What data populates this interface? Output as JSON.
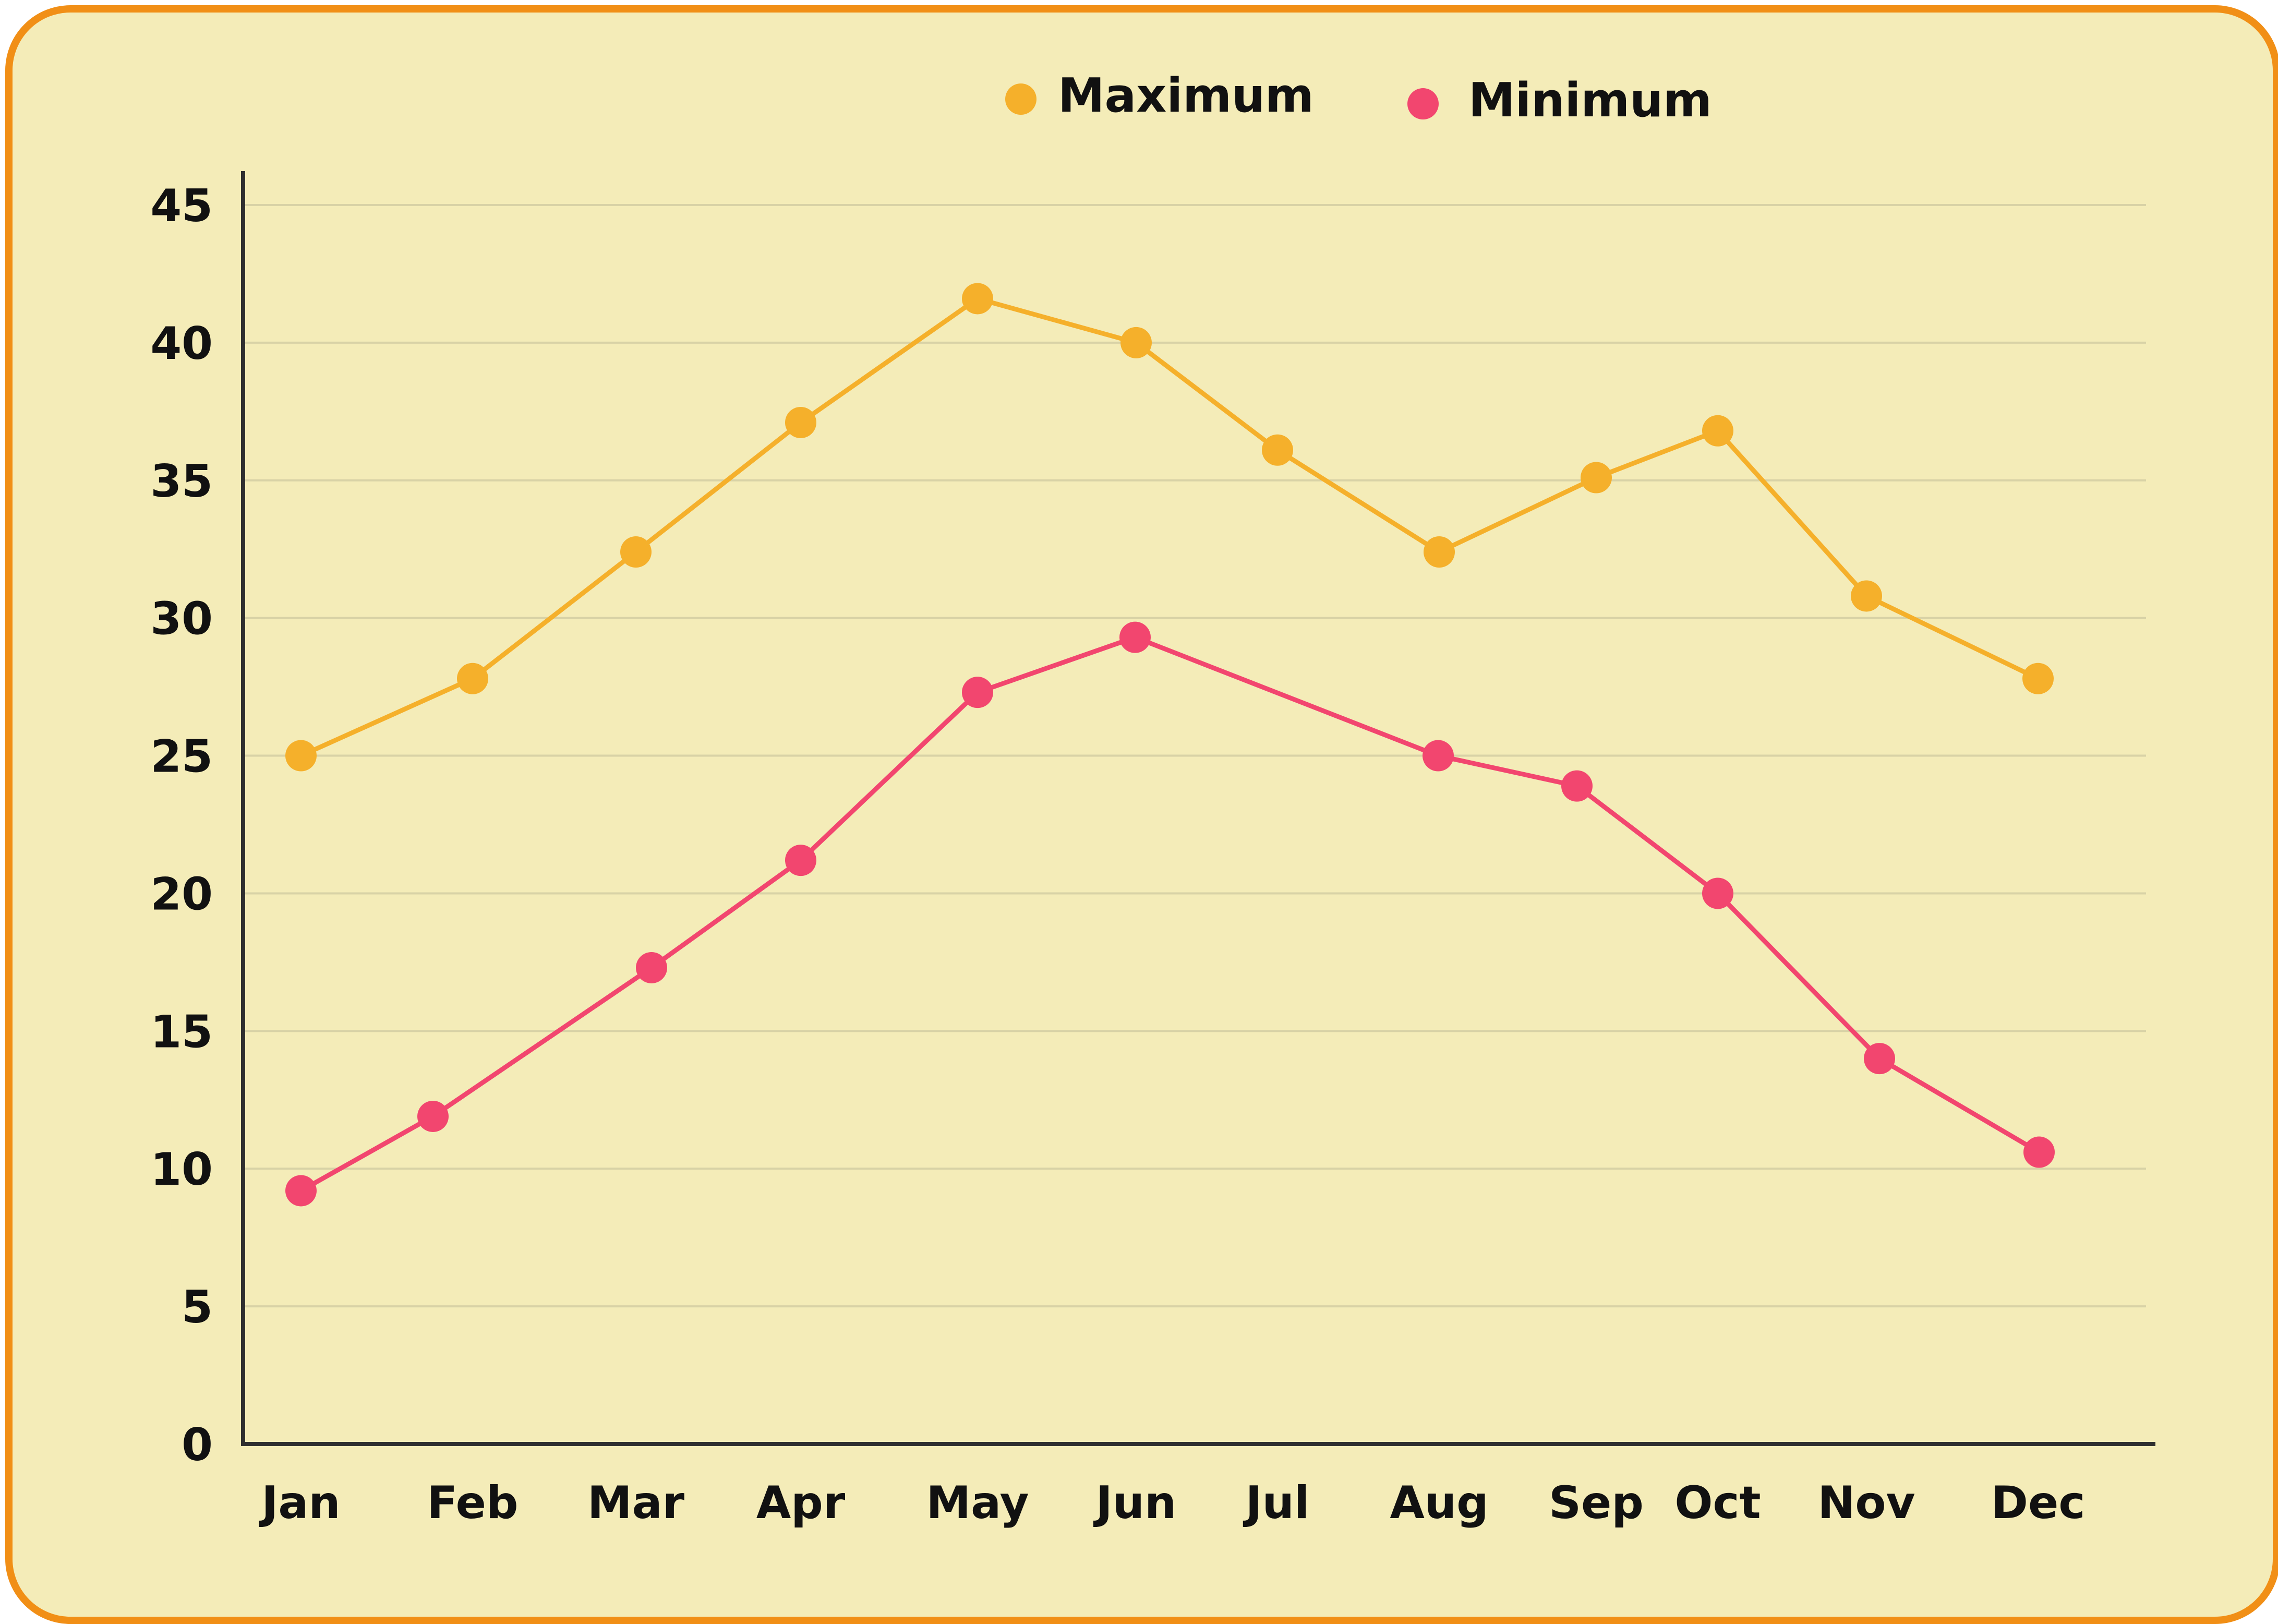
{
  "colors": {
    "background": "#f4ecb8",
    "border": "#f18f16",
    "maximum": "#f5b02b",
    "minimum": "#f2466f",
    "gridline": "#d8d2a6",
    "axis": "#2f2f2f"
  },
  "chart_data": {
    "type": "line",
    "title": "",
    "xlabel": "",
    "ylabel": "",
    "grid": true,
    "legend_position": "top-center",
    "categories": [
      "Jan",
      "Feb",
      "Mar",
      "Apr",
      "May",
      "Jun",
      "Jul",
      "Aug",
      "Sep",
      "Oct",
      "Nov",
      "Dec"
    ],
    "ylim": [
      0,
      45
    ],
    "yticks": [
      "0",
      "5",
      "10",
      "15",
      "20",
      "25",
      "30",
      "35",
      "40",
      "45"
    ],
    "series": [
      {
        "name": "Maximum",
        "color": "#f5b02b",
        "values": [
          25,
          27.8,
          32.4,
          37.1,
          41.6,
          40,
          36.1,
          32.4,
          35.1,
          36.8,
          30.8,
          27.8
        ]
      },
      {
        "name": "Minimum",
        "color": "#f2466f",
        "values": [
          9.2,
          11.9,
          17.3,
          21.2,
          27.3,
          29.3,
          null,
          25,
          23.9,
          20,
          14,
          10.6
        ]
      }
    ]
  }
}
